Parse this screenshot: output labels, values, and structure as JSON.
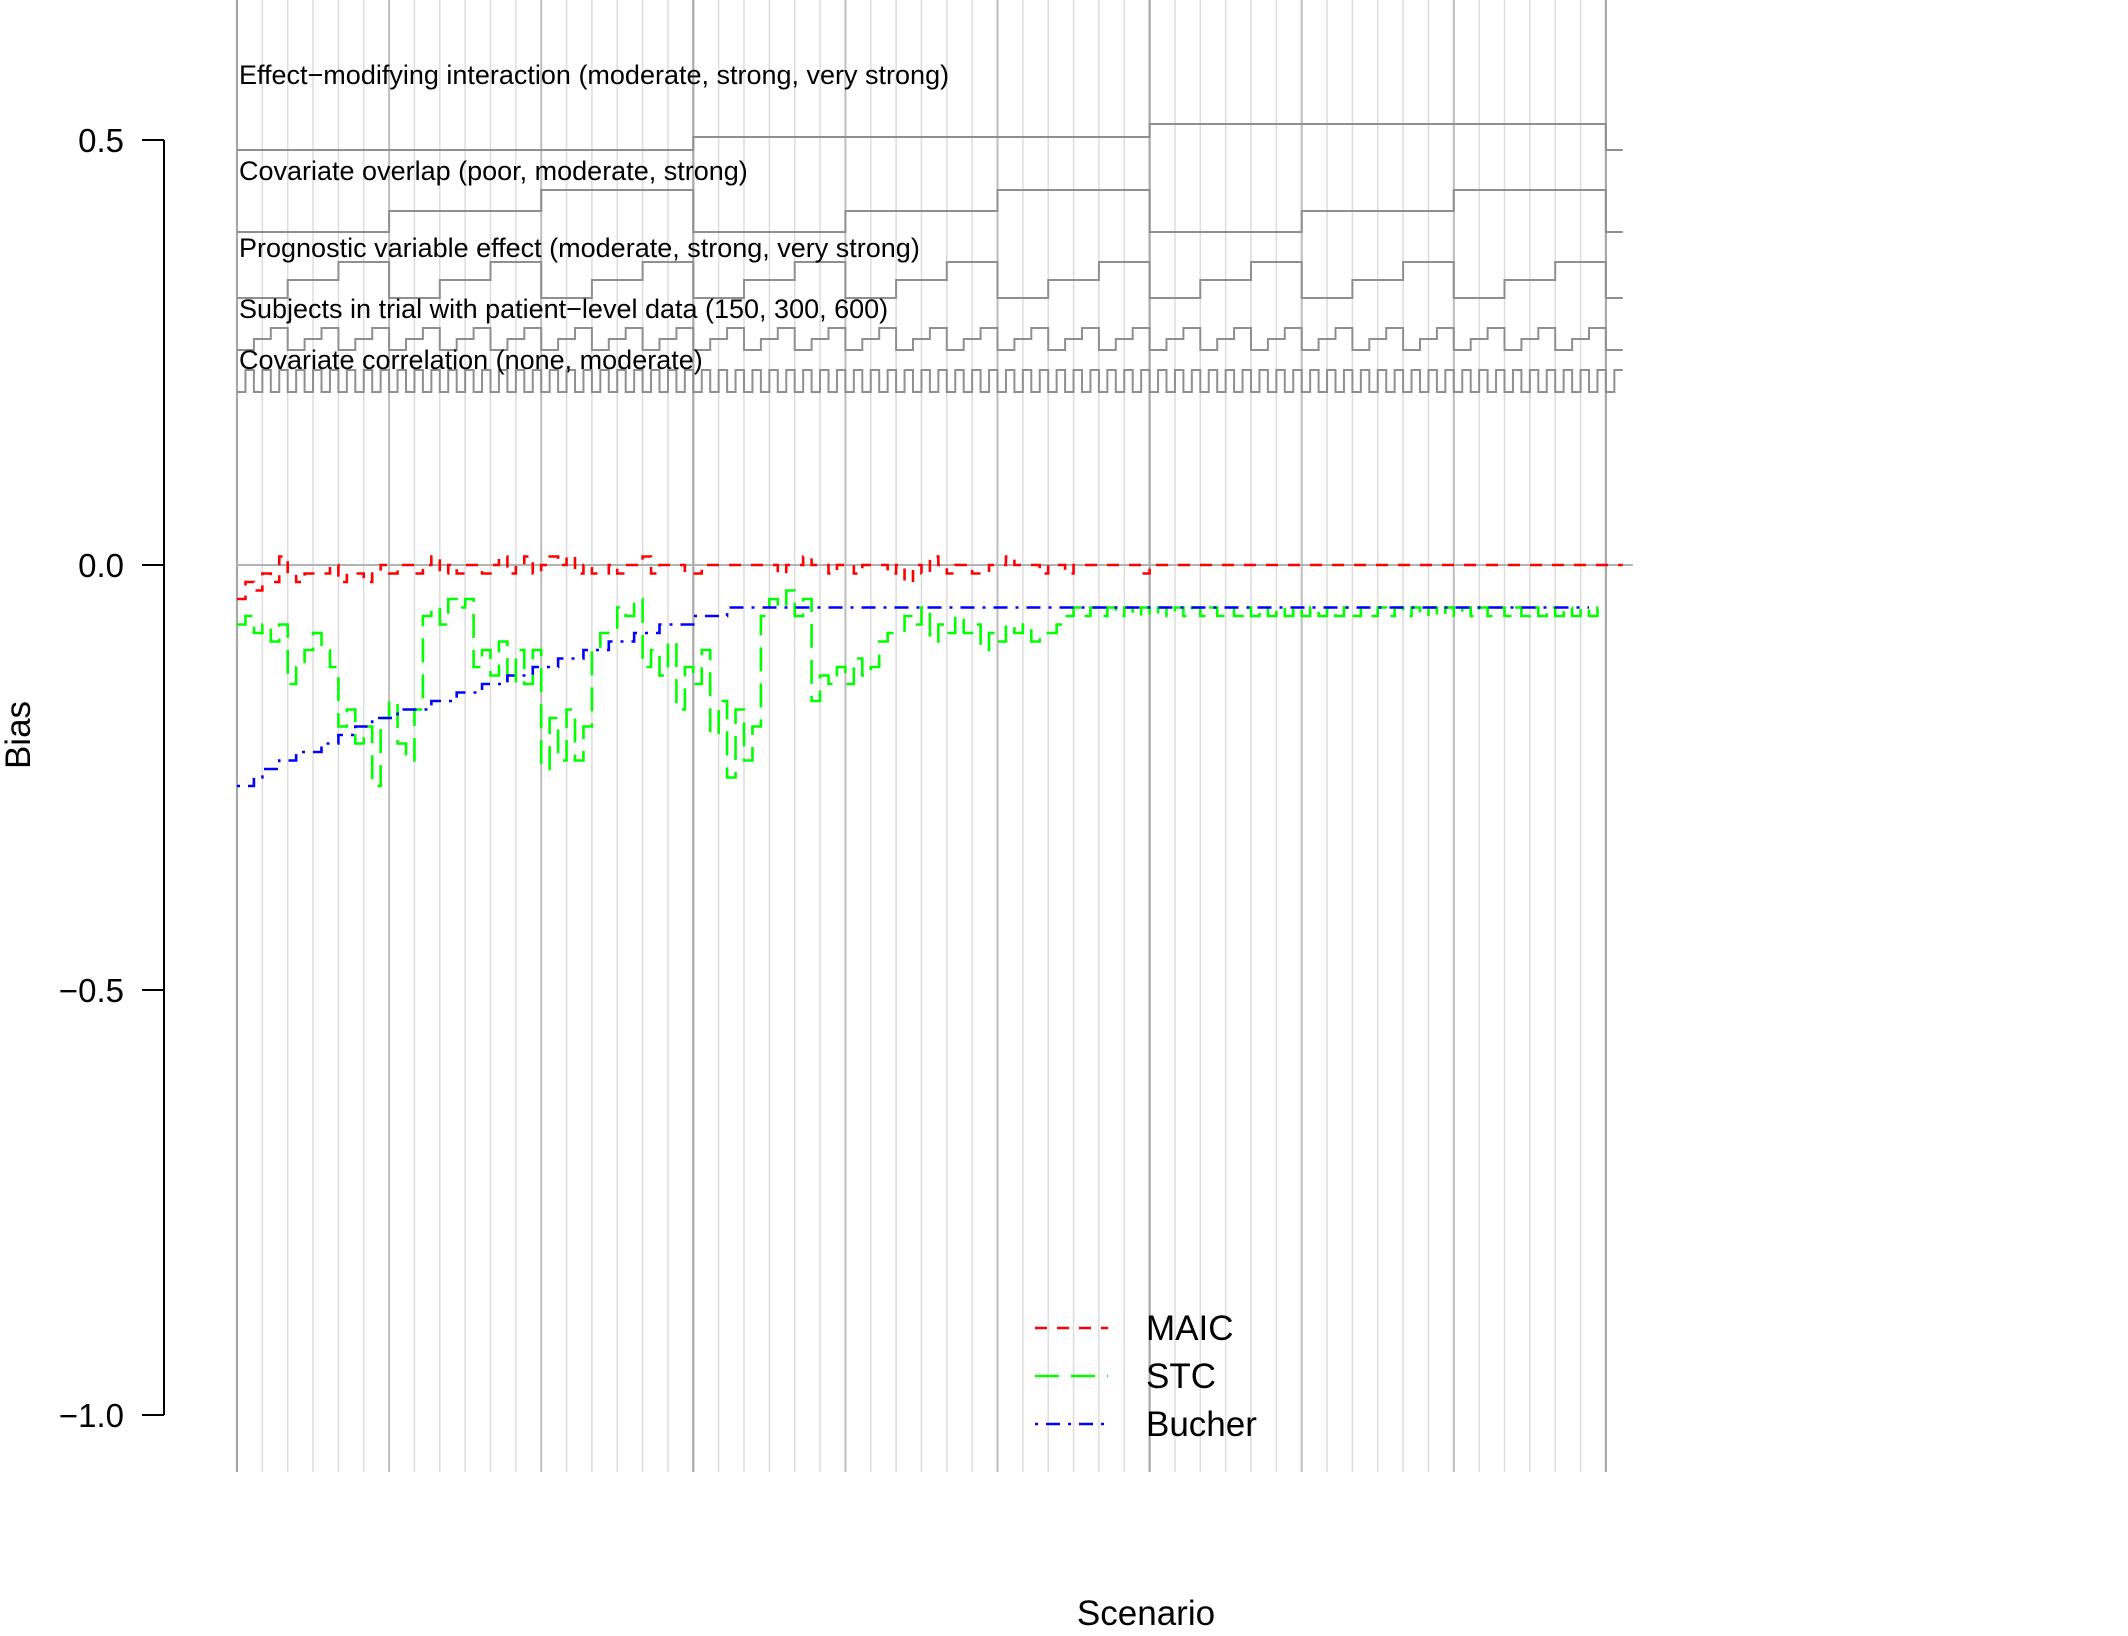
{
  "chart_data": {
    "type": "line",
    "xlabel": "Scenario",
    "ylabel": "Bias",
    "xlim": [
      1,
      162
    ],
    "ylim": [
      -1.0,
      0.5
    ],
    "yticks": [
      {
        "value": 0.5,
        "label": "0.5"
      },
      {
        "value": 0.0,
        "label": "0.0"
      },
      {
        "value": -0.5,
        "label": "−0.5"
      },
      {
        "value": -1.0,
        "label": "−1.0"
      }
    ],
    "reference_line": 0.0,
    "annotations": [
      {
        "name": "effect-modifying-interaction",
        "label": "Effect−modifying interaction (moderate, strong, very strong)"
      },
      {
        "name": "covariate-overlap",
        "label": "Covariate overlap (poor, moderate, strong)"
      },
      {
        "name": "prognostic-variable-effect",
        "label": "Prognostic variable effect (moderate, strong, very strong)"
      },
      {
        "name": "subjects-in-trial",
        "label": "Subjects in trial with patient−level data (150, 300, 600)"
      },
      {
        "name": "covariate-correlation",
        "label": "Covariate correlation (none, moderate)"
      }
    ],
    "legend_position": "bottom-center",
    "series": [
      {
        "name": "MAIC",
        "color": "#ff0000",
        "dash": "dashed",
        "values": [
          -0.04,
          -0.02,
          -0.03,
          -0.01,
          -0.02,
          0.01,
          -0.01,
          -0.02,
          -0.01,
          -0.01,
          -0.01,
          0.0,
          -0.02,
          -0.01,
          -0.01,
          -0.02,
          -0.01,
          0.0,
          -0.01,
          0.0,
          0.0,
          -0.01,
          0.0,
          0.01,
          -0.01,
          0.0,
          -0.01,
          0.0,
          0.0,
          -0.01,
          0.0,
          0.01,
          -0.01,
          0.0,
          0.01,
          -0.01,
          0.0,
          0.01,
          0.0,
          0.01,
          -0.01,
          0.0,
          -0.01,
          -0.01,
          0.0,
          -0.01,
          0.0,
          0.0,
          0.01,
          -0.01,
          0.0,
          0.0,
          0.0,
          -0.01,
          -0.01,
          0.0,
          0.0,
          0.0,
          0.0,
          0.0,
          0.0,
          0.0,
          0.0,
          0.0,
          -0.01,
          0.0,
          0.0,
          0.01,
          0.0,
          0.0,
          -0.01,
          0.0,
          0.0,
          -0.01,
          0.0,
          0.0,
          0.0,
          -0.01,
          0.0,
          -0.02,
          0.0,
          -0.01,
          0.01,
          0.0,
          -0.01,
          0.0,
          0.0,
          -0.01,
          -0.01,
          0.0,
          0.0,
          0.01,
          0.0,
          0.0,
          0.0,
          -0.01,
          0.0,
          0.0,
          -0.01,
          0.0,
          0.0,
          0.0,
          0.0,
          0.0,
          0.0,
          0.0,
          0.0,
          -0.01,
          0.0,
          0.0,
          0.0,
          0.0,
          0.0,
          0.0,
          0.0,
          0.0,
          0.0,
          0.0,
          0.0,
          0.0,
          0.0,
          0.0,
          0.0,
          0.0,
          0.0,
          0.0,
          0.0,
          0.0,
          0.0,
          0.0,
          0.0,
          0.0,
          0.0,
          0.0,
          0.0,
          0.0,
          0.0,
          0.0,
          0.0,
          0.0,
          0.0,
          0.0,
          0.0,
          0.0,
          0.0,
          0.0,
          0.0,
          0.0,
          0.0,
          0.0,
          0.0,
          0.0,
          0.0,
          0.0,
          0.0,
          0.0,
          0.0,
          0.0,
          0.0,
          0.0,
          0.0,
          0.0,
          0.0,
          0.0
        ]
      },
      {
        "name": "STC",
        "color": "#00ff00",
        "dash": "longdash",
        "values": [
          -0.07,
          -0.06,
          -0.08,
          -0.07,
          -0.09,
          -0.07,
          -0.14,
          -0.12,
          -0.1,
          -0.08,
          -0.1,
          -0.12,
          -0.19,
          -0.17,
          -0.21,
          -0.19,
          -0.26,
          -0.18,
          -0.16,
          -0.21,
          -0.23,
          -0.17,
          -0.06,
          -0.05,
          -0.07,
          -0.04,
          -0.05,
          -0.04,
          -0.12,
          -0.1,
          -0.13,
          -0.09,
          -0.14,
          -0.1,
          -0.14,
          -0.1,
          -0.24,
          -0.18,
          -0.23,
          -0.17,
          -0.23,
          -0.19,
          -0.1,
          -0.08,
          -0.08,
          -0.05,
          -0.06,
          -0.04,
          -0.12,
          -0.1,
          -0.13,
          -0.09,
          -0.17,
          -0.12,
          -0.14,
          -0.1,
          -0.2,
          -0.16,
          -0.25,
          -0.17,
          -0.23,
          -0.19,
          -0.06,
          -0.04,
          -0.05,
          -0.03,
          -0.06,
          -0.04,
          -0.16,
          -0.13,
          -0.14,
          -0.12,
          -0.14,
          -0.11,
          -0.13,
          -0.12,
          -0.09,
          -0.08,
          -0.08,
          -0.06,
          -0.07,
          -0.05,
          -0.09,
          -0.07,
          -0.08,
          -0.06,
          -0.08,
          -0.07,
          -0.1,
          -0.08,
          -0.09,
          -0.07,
          -0.08,
          -0.07,
          -0.09,
          -0.08,
          -0.08,
          -0.07,
          -0.06,
          -0.05,
          -0.06,
          -0.05,
          -0.06,
          -0.05,
          -0.06,
          -0.05,
          -0.06,
          -0.05,
          -0.06,
          -0.05,
          -0.06,
          -0.05,
          -0.06,
          -0.05,
          -0.06,
          -0.05,
          -0.06,
          -0.05,
          -0.06,
          -0.05,
          -0.06,
          -0.05,
          -0.06,
          -0.05,
          -0.06,
          -0.05,
          -0.06,
          -0.05,
          -0.06,
          -0.05,
          -0.06,
          -0.05,
          -0.06,
          -0.05,
          -0.06,
          -0.05,
          -0.06,
          -0.05,
          -0.06,
          -0.05,
          -0.06,
          -0.05,
          -0.06,
          -0.05,
          -0.06,
          -0.05,
          -0.06,
          -0.05,
          -0.06,
          -0.05,
          -0.06,
          -0.05,
          -0.06,
          -0.05,
          -0.06,
          -0.05,
          -0.06,
          -0.05,
          -0.06,
          -0.05,
          -0.06,
          -0.05
        ]
      },
      {
        "name": "Bucher",
        "color": "#0000ff",
        "dash": "dotdash",
        "values": [
          -0.26,
          -0.26,
          -0.25,
          -0.24,
          -0.24,
          -0.23,
          -0.23,
          -0.22,
          -0.22,
          -0.22,
          -0.21,
          -0.21,
          -0.2,
          -0.2,
          -0.19,
          -0.19,
          -0.18,
          -0.18,
          -0.18,
          -0.17,
          -0.17,
          -0.17,
          -0.17,
          -0.16,
          -0.16,
          -0.16,
          -0.15,
          -0.15,
          -0.15,
          -0.14,
          -0.14,
          -0.14,
          -0.13,
          -0.13,
          -0.13,
          -0.12,
          -0.12,
          -0.12,
          -0.11,
          -0.11,
          -0.11,
          -0.1,
          -0.1,
          -0.1,
          -0.09,
          -0.09,
          -0.09,
          -0.08,
          -0.08,
          -0.08,
          -0.07,
          -0.07,
          -0.07,
          -0.07,
          -0.06,
          -0.06,
          -0.06,
          -0.06,
          -0.05,
          -0.05,
          -0.05,
          -0.05,
          -0.05,
          -0.05,
          -0.05,
          -0.05,
          -0.05,
          -0.05,
          -0.05,
          -0.05,
          -0.05,
          -0.05,
          -0.05,
          -0.05,
          -0.05,
          -0.05,
          -0.05,
          -0.05,
          -0.05,
          -0.05,
          -0.05,
          -0.05,
          -0.05,
          -0.05,
          -0.05,
          -0.05,
          -0.05,
          -0.05,
          -0.05,
          -0.05,
          -0.05,
          -0.05,
          -0.05,
          -0.05,
          -0.05,
          -0.05,
          -0.05,
          -0.05,
          -0.05,
          -0.05,
          -0.05,
          -0.05,
          -0.05,
          -0.05,
          -0.05,
          -0.05,
          -0.05,
          -0.05,
          -0.05,
          -0.05,
          -0.05,
          -0.05,
          -0.05,
          -0.05,
          -0.05,
          -0.05,
          -0.05,
          -0.05,
          -0.05,
          -0.05,
          -0.05,
          -0.05,
          -0.05,
          -0.05,
          -0.05,
          -0.05,
          -0.05,
          -0.05,
          -0.05,
          -0.05,
          -0.05,
          -0.05,
          -0.05,
          -0.05,
          -0.05,
          -0.05,
          -0.05,
          -0.05,
          -0.05,
          -0.05,
          -0.05,
          -0.05,
          -0.05,
          -0.05,
          -0.05,
          -0.05,
          -0.05,
          -0.05,
          -0.05,
          -0.05,
          -0.05,
          -0.05,
          -0.05,
          -0.05,
          -0.05,
          -0.05,
          -0.05,
          -0.05,
          -0.05,
          -0.05
        ]
      }
    ]
  }
}
